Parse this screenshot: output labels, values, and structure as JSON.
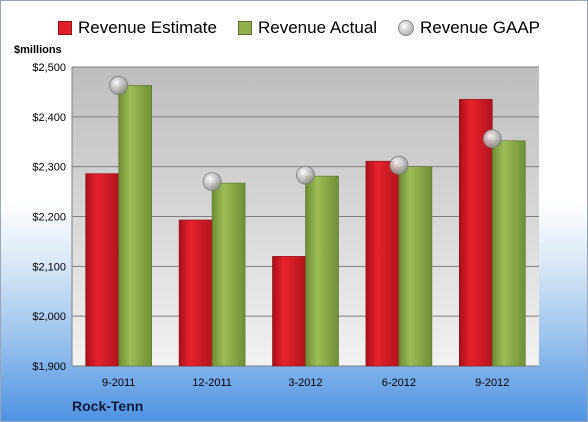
{
  "company": "Rock-Tenn",
  "units_label": "$millions",
  "colors": {
    "estimate": "#e01e26",
    "actual": "#8fb04a",
    "gaap": "#c8c8c8",
    "plot_top": "#bdbdbd",
    "plot_bottom": "#f2f2f2"
  },
  "legend": {
    "estimate": "Revenue Estimate",
    "actual": "Revenue Actual",
    "gaap": "Revenue GAAP"
  },
  "chart_data": {
    "type": "bar",
    "categories": [
      "9-2011",
      "12-2011",
      "3-2012",
      "6-2012",
      "9-2012"
    ],
    "series": [
      {
        "name": "Revenue Estimate",
        "values": [
          2286,
          2193,
          2120,
          2311,
          2435
        ]
      },
      {
        "name": "Revenue Actual",
        "values": [
          2463,
          2267,
          2281,
          2300,
          2352
        ]
      },
      {
        "name": "Revenue GAAP",
        "values": [
          2463,
          2270,
          2283,
          2303,
          2356
        ],
        "marker": "circle"
      }
    ],
    "yticks": [
      "$1,900",
      "$2,000",
      "$2,100",
      "$2,200",
      "$2,300",
      "$2,400",
      "$2,500"
    ],
    "ylim": [
      1900,
      2500
    ],
    "ylabel": "$millions",
    "grid": true,
    "legend_position": "top"
  }
}
